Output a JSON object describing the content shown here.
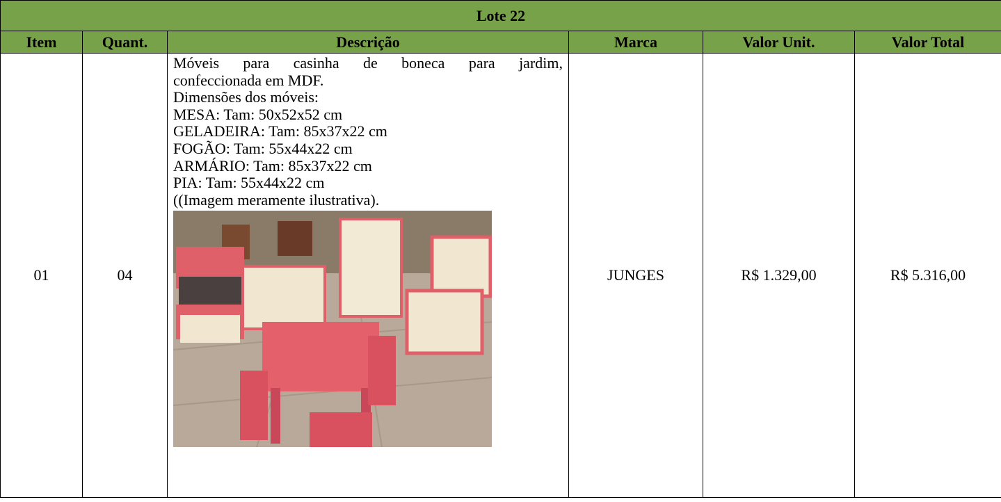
{
  "table": {
    "title": "Lote 22",
    "headers": [
      "Item",
      "Quant.",
      "Descrição",
      "Marca",
      "Valor Unit.",
      "Valor Total"
    ],
    "rows": [
      {
        "item": "01",
        "quantity": "04",
        "description": [
          "Móveis para casinha de boneca para jardim,",
          "confeccionada em MDF.",
          "Dimensões dos móveis:",
          "MESA: Tam: 50x52x52 cm",
          "GELADEIRA: Tam: 85x37x22 cm",
          "FOGÃO: Tam: 55x44x22 cm",
          "ARMÁRIO: Tam: 85x37x22 cm",
          "PIA: Tam: 55x44x22 cm",
          "((Imagem meramente ilustrativa)."
        ],
        "brand": "JUNGES",
        "unit_value": "R$ 1.329,00",
        "total_value": "R$ 5.316,00"
      }
    ]
  }
}
